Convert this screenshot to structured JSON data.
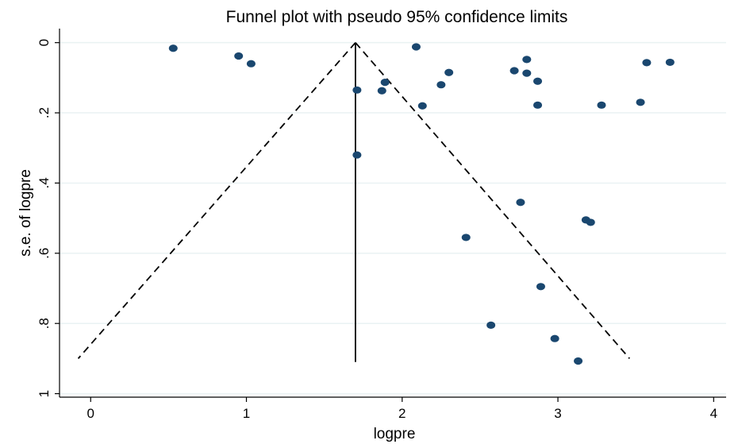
{
  "chart_data": {
    "type": "scatter",
    "title": "Funnel plot with pseudo 95% confidence limits",
    "xlabel": "logpre",
    "ylabel": "s.e. of logpre",
    "xlim": [
      -0.2,
      4.08
    ],
    "ylim": [
      1.01,
      -0.04
    ],
    "y_reversed": true,
    "grid": "horizontal",
    "background_color": "#ffffff",
    "plot_background_color": "#ffffff",
    "grid_color": "#eaf2f3",
    "point_color": "#1a476f",
    "line_color": "#000000",
    "x_ticks": [
      {
        "value": 0,
        "label": "0"
      },
      {
        "value": 1,
        "label": "1"
      },
      {
        "value": 2,
        "label": "2"
      },
      {
        "value": 3,
        "label": "3"
      },
      {
        "value": 4,
        "label": "4"
      }
    ],
    "y_ticks": [
      {
        "value": 0,
        "label": "0"
      },
      {
        "value": 0.2,
        "label": ".2"
      },
      {
        "value": 0.4,
        "label": ".4"
      },
      {
        "value": 0.6,
        "label": ".6"
      },
      {
        "value": 0.8,
        "label": ".8"
      },
      {
        "value": 1,
        "label": "1"
      }
    ],
    "pooled_estimate": 1.7,
    "max_se": 0.91,
    "funnel_lines": [
      {
        "from": [
          1.7,
          0
        ],
        "to": [
          -0.08,
          0.9
        ]
      },
      {
        "from": [
          1.7,
          0
        ],
        "to": [
          3.46,
          0.9
        ]
      }
    ],
    "points": [
      {
        "x": 0.53,
        "y": 0.016
      },
      {
        "x": 0.95,
        "y": 0.038
      },
      {
        "x": 1.03,
        "y": 0.06
      },
      {
        "x": 1.71,
        "y": 0.135
      },
      {
        "x": 1.71,
        "y": 0.32
      },
      {
        "x": 1.87,
        "y": 0.137
      },
      {
        "x": 1.89,
        "y": 0.113
      },
      {
        "x": 2.09,
        "y": 0.012
      },
      {
        "x": 2.13,
        "y": 0.18
      },
      {
        "x": 2.25,
        "y": 0.12
      },
      {
        "x": 2.3,
        "y": 0.085
      },
      {
        "x": 2.41,
        "y": 0.555
      },
      {
        "x": 2.57,
        "y": 0.805
      },
      {
        "x": 2.72,
        "y": 0.08
      },
      {
        "x": 2.76,
        "y": 0.455
      },
      {
        "x": 2.8,
        "y": 0.048
      },
      {
        "x": 2.8,
        "y": 0.087
      },
      {
        "x": 2.87,
        "y": 0.178
      },
      {
        "x": 2.87,
        "y": 0.11
      },
      {
        "x": 2.89,
        "y": 0.695
      },
      {
        "x": 2.98,
        "y": 0.843
      },
      {
        "x": 3.13,
        "y": 0.907
      },
      {
        "x": 3.18,
        "y": 0.505
      },
      {
        "x": 3.21,
        "y": 0.512
      },
      {
        "x": 3.28,
        "y": 0.178
      },
      {
        "x": 3.53,
        "y": 0.17
      },
      {
        "x": 3.57,
        "y": 0.057
      },
      {
        "x": 3.72,
        "y": 0.056
      }
    ]
  }
}
